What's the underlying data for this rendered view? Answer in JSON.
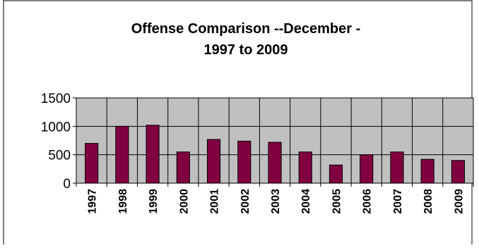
{
  "chart_data": {
    "type": "bar",
    "title_lines": [
      "Offense Comparison --December -",
      "1997 to 2009"
    ],
    "xlabel": "",
    "ylabel": "",
    "categories": [
      "1997",
      "1998",
      "1999",
      "2000",
      "2001",
      "2002",
      "2003",
      "2004",
      "2005",
      "2006",
      "2007",
      "2008",
      "2009"
    ],
    "values": [
      700,
      1000,
      1020,
      550,
      770,
      740,
      720,
      550,
      320,
      500,
      550,
      420,
      400
    ],
    "ylim": [
      0,
      1500
    ],
    "yticks": [
      0,
      500,
      1000,
      1500
    ],
    "ytick_labels": [
      "0",
      "500",
      "1000",
      "1500"
    ],
    "grid": true,
    "legend": "none",
    "colors": {
      "bar_fill": "#800040",
      "bar_stroke": "#000000",
      "plot_background": "#c0c0c0",
      "grid": "#000000"
    }
  }
}
